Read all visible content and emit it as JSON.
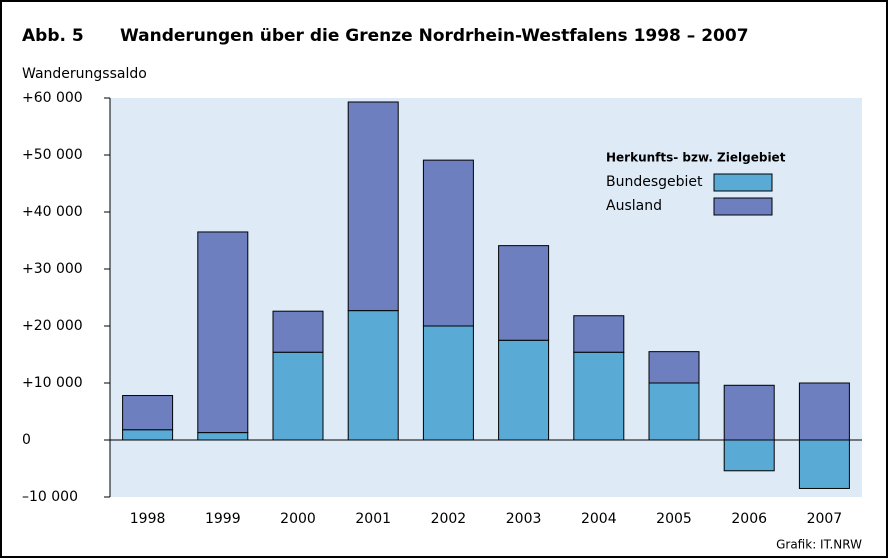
{
  "chart_data": {
    "type": "stacked_bar",
    "label": "Abb. 5",
    "title": "Wanderungen über die Grenze Nordrhein-Westfalens 1998 – 2007",
    "y_axis_label": "Wanderungssaldo",
    "legend_title": "Herkunfts- bzw. Zielgebiet",
    "source": "Grafik: IT.NRW",
    "categories": [
      "1998",
      "1999",
      "2000",
      "2001",
      "2002",
      "2003",
      "2004",
      "2005",
      "2006",
      "2007"
    ],
    "series": [
      {
        "name": "Bundesgebiet",
        "color": "#5aaad6",
        "values": [
          1800,
          1300,
          15400,
          22700,
          20000,
          17500,
          15400,
          10000,
          -5400,
          -8500
        ]
      },
      {
        "name": "Ausland",
        "color": "#6e7fc0",
        "values": [
          6000,
          35200,
          7200,
          36600,
          29100,
          16600,
          6400,
          5500,
          9600,
          10000
        ]
      }
    ],
    "ylim": [
      -10000,
      60000
    ],
    "yticks": [
      {
        "value": -10000,
        "label": "–10 000"
      },
      0,
      {
        "value": 10000,
        "label": "+10 000"
      },
      {
        "value": 20000,
        "label": "+20 000"
      },
      {
        "value": 30000,
        "label": "+30 000"
      },
      {
        "value": 40000,
        "label": "+40 000"
      },
      {
        "value": 50000,
        "label": "+50 000"
      },
      {
        "value": 60000,
        "label": "+60 000"
      }
    ]
  }
}
